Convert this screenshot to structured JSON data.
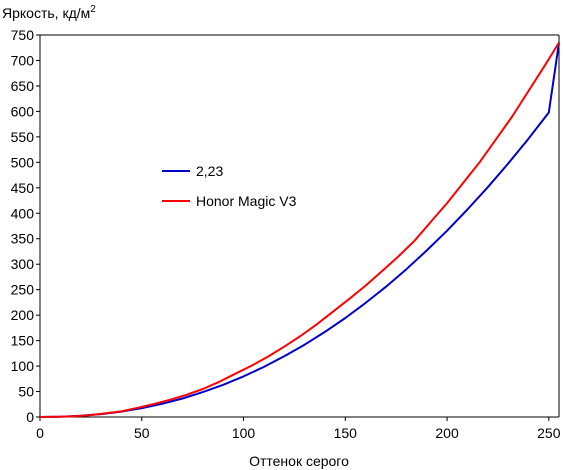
{
  "chart_data": {
    "type": "line",
    "title": "",
    "ylabel_main": "Яркость, кд/м",
    "ylabel_sup": "2",
    "xlabel": "Оттенок серого",
    "xlim": [
      0,
      255
    ],
    "ylim": [
      0,
      750
    ],
    "xticks": [
      0,
      50,
      100,
      150,
      200,
      250
    ],
    "yticks": [
      0,
      50,
      100,
      150,
      200,
      250,
      300,
      350,
      400,
      450,
      500,
      550,
      600,
      650,
      700,
      750
    ],
    "grid": false,
    "legend_position": "center-left",
    "series": [
      {
        "name": "2,23",
        "color": "#0000cc",
        "x": [
          0,
          10,
          20,
          30,
          40,
          50,
          60,
          70,
          80,
          90,
          100,
          110,
          120,
          130,
          140,
          150,
          160,
          170,
          180,
          190,
          200,
          210,
          220,
          230,
          240,
          250,
          255
        ],
        "y": [
          0,
          0.5,
          2.3,
          5.6,
          10.6,
          17.3,
          25.9,
          36.4,
          48.8,
          63.2,
          79.7,
          98.3,
          119.1,
          142.0,
          167.1,
          194.4,
          224.0,
          255.9,
          290.2,
          326.8,
          365.8,
          407.3,
          451.2,
          497.5,
          546.4,
          597.8,
          735
        ]
      },
      {
        "name": "Honor Magic V3",
        "color": "#ff0000",
        "x": [
          0,
          8,
          16,
          24,
          32,
          40,
          48,
          56,
          64,
          72,
          80,
          88,
          96,
          104,
          112,
          120,
          128,
          136,
          144,
          152,
          160,
          168,
          176,
          184,
          192,
          200,
          208,
          216,
          224,
          232,
          240,
          248,
          255
        ],
        "y": [
          0,
          0.3,
          1.2,
          3.5,
          7.0,
          11.0,
          18.0,
          25.5,
          34.0,
          43.5,
          55.0,
          69.0,
          85.0,
          101.0,
          118.5,
          138.0,
          159.0,
          182.0,
          207.0,
          232.0,
          258.0,
          286.0,
          315.0,
          346.0,
          383.0,
          420.0,
          460.0,
          500.0,
          545.0,
          590.0,
          640.0,
          690.0,
          735.0
        ]
      }
    ]
  }
}
